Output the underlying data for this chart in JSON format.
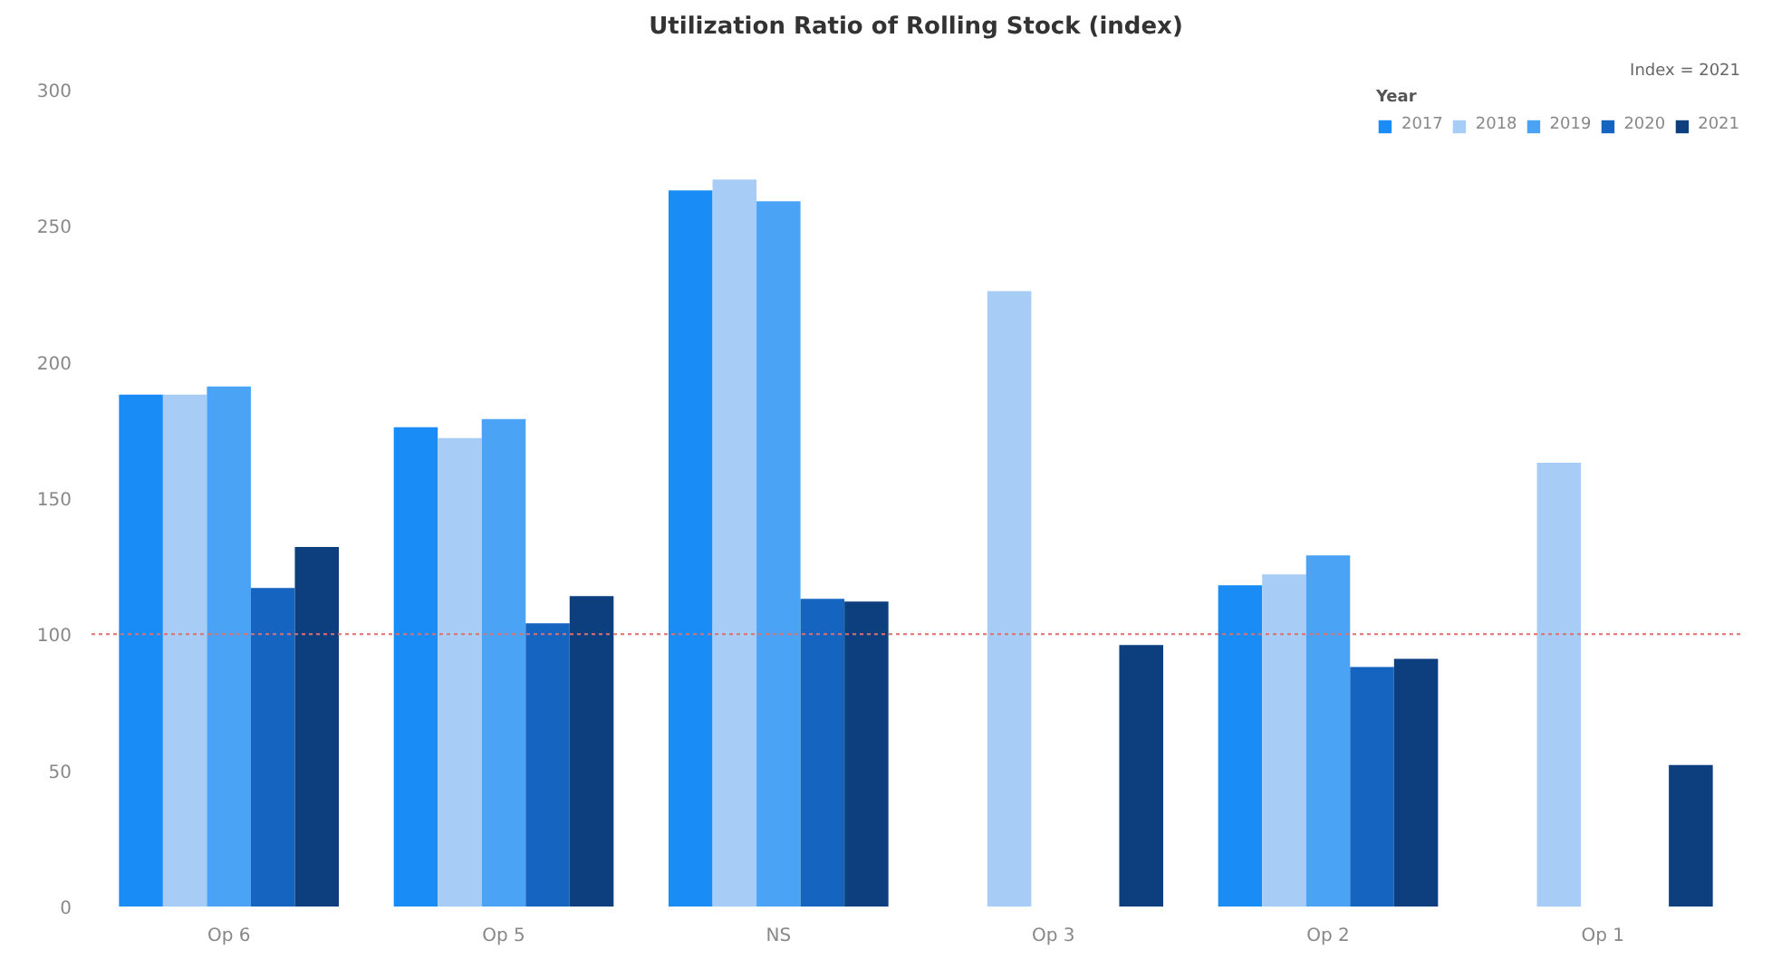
{
  "chart_data": {
    "type": "bar",
    "title": "Utilization Ratio of Rolling Stock (index)",
    "categories": [
      "Op 6",
      "Op 5",
      "NS",
      "Op 3",
      "Op 2",
      "Op 1"
    ],
    "legend_title": "Year",
    "series": [
      {
        "name": "2017",
        "color": "#1a8cf5",
        "values": [
          188,
          176,
          263,
          null,
          118,
          null
        ]
      },
      {
        "name": "2018",
        "color": "#a7cdf7",
        "values": [
          188,
          172,
          267,
          226,
          122,
          163
        ]
      },
      {
        "name": "2019",
        "color": "#4aa3f5",
        "values": [
          191,
          179,
          259,
          null,
          129,
          null
        ]
      },
      {
        "name": "2020",
        "color": "#1565c0",
        "values": [
          117,
          104,
          113,
          null,
          88,
          null
        ]
      },
      {
        "name": "2021",
        "color": "#0d3f7f",
        "values": [
          132,
          114,
          112,
          96,
          91,
          52
        ]
      }
    ],
    "ylim": [
      0,
      300
    ],
    "yticks": [
      0,
      50,
      100,
      150,
      200,
      250,
      300
    ],
    "ref_lines": [
      {
        "axis": "y",
        "value": 100,
        "color": "#e07070",
        "line_style": "dotted"
      }
    ],
    "annotations": [
      "Index = 2021"
    ],
    "grid": false,
    "legend": "top right"
  }
}
